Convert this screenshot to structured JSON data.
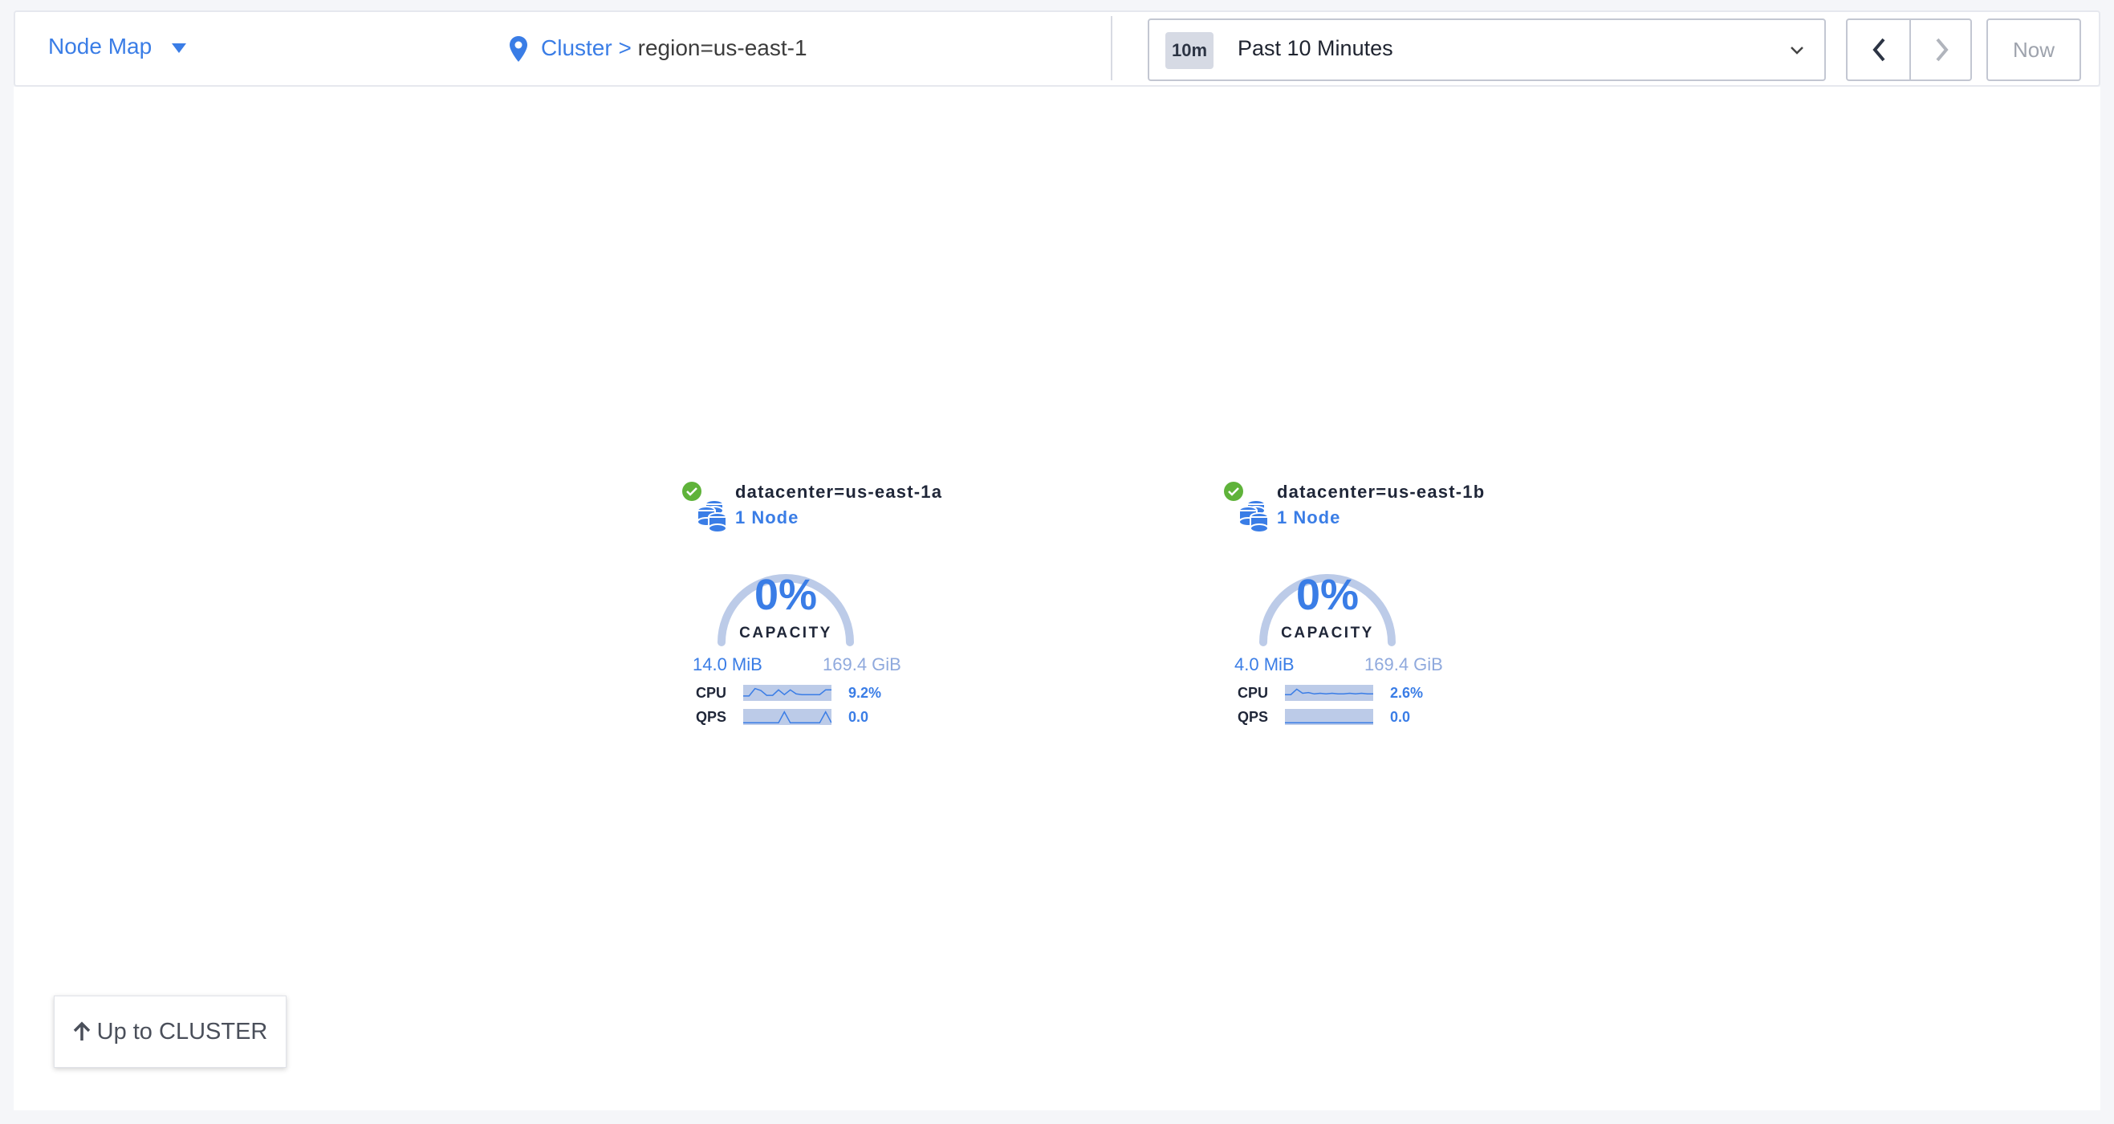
{
  "header": {
    "view_selector": "Node Map",
    "breadcrumb": {
      "root": "Cluster",
      "separator": ">",
      "current": "region=us-east-1"
    },
    "time": {
      "badge": "10m",
      "label": "Past 10 Minutes"
    },
    "now_label": "Now"
  },
  "colors": {
    "accent": "#3a7de6",
    "healthy": "#5fb33a",
    "gauge_track": "#bccbe8"
  },
  "nodes": [
    {
      "title": "datacenter=us-east-1a",
      "count": "1 Node",
      "capacity_pct": "0%",
      "capacity_label": "CAPACITY",
      "used": "14.0 MiB",
      "total": "169.4 GiB",
      "cpu_label": "CPU",
      "cpu_value": "9.2%",
      "qps_label": "QPS",
      "qps_value": "0.0",
      "cpu_series": [
        0.3,
        0.3,
        0.85,
        0.7,
        0.35,
        0.35,
        0.75,
        0.4,
        0.75,
        0.45,
        0.4,
        0.4,
        0.4,
        0.4,
        0.75,
        0.75
      ],
      "qps_series": [
        0.1,
        0.1,
        0.1,
        0.1,
        0.1,
        0.1,
        0.1,
        0.9,
        0.1,
        0.1,
        0.1,
        0.1,
        0.1,
        0.1,
        0.9,
        0.1
      ]
    },
    {
      "title": "datacenter=us-east-1b",
      "count": "1 Node",
      "capacity_pct": "0%",
      "capacity_label": "CAPACITY",
      "used": "4.0 MiB",
      "total": "169.4 GiB",
      "cpu_label": "CPU",
      "cpu_value": "2.6%",
      "qps_label": "QPS",
      "qps_value": "0.0",
      "cpu_series": [
        0.4,
        0.4,
        0.8,
        0.5,
        0.55,
        0.45,
        0.5,
        0.45,
        0.5,
        0.45,
        0.45,
        0.5,
        0.45,
        0.5,
        0.45,
        0.45
      ],
      "qps_series": [
        0.1,
        0.1,
        0.1,
        0.1,
        0.1,
        0.1,
        0.1,
        0.1,
        0.1,
        0.1,
        0.1,
        0.1,
        0.1,
        0.1,
        0.1,
        0.1
      ]
    }
  ],
  "up_button": "Up to CLUSTER"
}
